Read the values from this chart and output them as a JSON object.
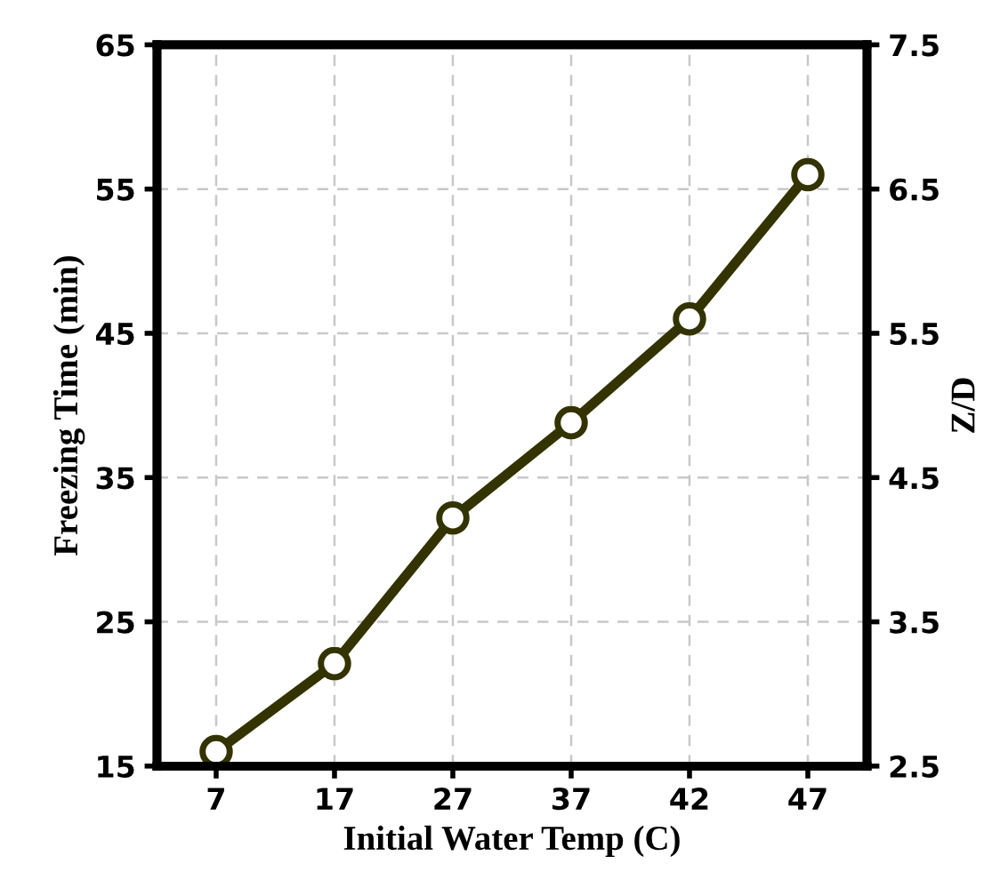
{
  "chart_data": {
    "type": "line",
    "xlabel": "Initial Water Temp (C)",
    "ylabel": "Freezing Time (min)",
    "y2label": "Z/D",
    "categories": [
      "7",
      "17",
      "27",
      "37",
      "42",
      "47"
    ],
    "series": [
      {
        "color": "#333300",
        "values": [
          16,
          22.1,
          32.2,
          38.8,
          46.0,
          56
        ]
      }
    ],
    "ylim": [
      15,
      65
    ],
    "yticks": [
      15,
      25,
      35,
      45,
      55,
      65
    ],
    "y2lim": [
      2.5,
      7.5
    ],
    "y2ticks": [
      2.5,
      3.5,
      4.5,
      5.5,
      6.5,
      7.5
    ],
    "grid": true,
    "marker": "circle",
    "line_style": "solid",
    "legend": false
  }
}
